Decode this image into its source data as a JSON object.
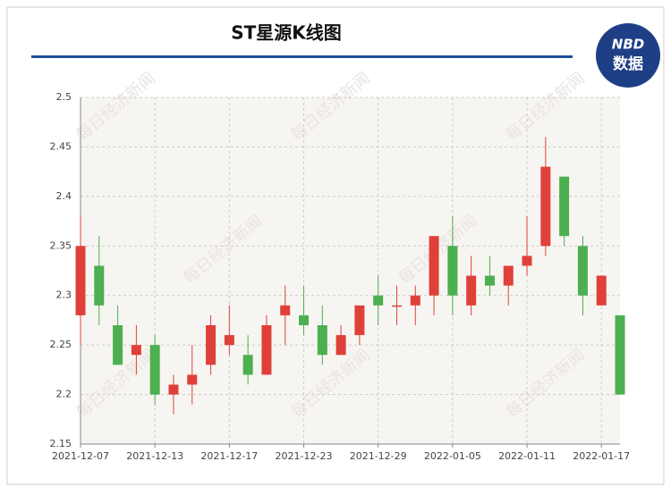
{
  "chart_data": {
    "type": "candlestick",
    "title": "ST星源K线图",
    "logo_top": "NBD",
    "logo_bottom": "数据",
    "watermark": "每日经济新闻",
    "categories": [
      "2021-12-07",
      null,
      null,
      null,
      "2021-12-13",
      null,
      null,
      null,
      "2021-12-17",
      null,
      null,
      null,
      "2021-12-23",
      null,
      null,
      null,
      "2021-12-29",
      null,
      null,
      null,
      "2022-01-05",
      null,
      null,
      null,
      "2022-01-11",
      null,
      null,
      null,
      "2022-01-17",
      null
    ],
    "open": [
      2.28,
      2.33,
      2.27,
      2.24,
      2.25,
      2.2,
      2.21,
      2.23,
      2.25,
      2.24,
      2.22,
      2.28,
      2.28,
      2.27,
      2.24,
      2.26,
      2.3,
      2.29,
      2.29,
      2.3,
      2.35,
      2.29,
      2.32,
      2.31,
      2.33,
      2.35,
      2.42,
      2.35,
      2.29,
      2.28
    ],
    "high": [
      2.38,
      2.36,
      2.29,
      2.27,
      2.26,
      2.22,
      2.25,
      2.28,
      2.29,
      2.26,
      2.28,
      2.31,
      2.31,
      2.29,
      2.27,
      2.29,
      2.32,
      2.31,
      2.31,
      2.36,
      2.38,
      2.34,
      2.34,
      2.33,
      2.38,
      2.46,
      2.42,
      2.36,
      2.32,
      2.28
    ],
    "low": [
      2.25,
      2.27,
      2.23,
      2.22,
      2.19,
      2.18,
      2.19,
      2.22,
      2.24,
      2.21,
      2.22,
      2.25,
      2.26,
      2.23,
      2.24,
      2.25,
      2.27,
      2.27,
      2.27,
      2.28,
      2.28,
      2.28,
      2.3,
      2.29,
      2.32,
      2.34,
      2.35,
      2.28,
      2.29,
      2.2
    ],
    "close": [
      2.35,
      2.29,
      2.23,
      2.25,
      2.2,
      2.21,
      2.22,
      2.27,
      2.26,
      2.22,
      2.27,
      2.29,
      2.27,
      2.24,
      2.26,
      2.29,
      2.29,
      2.29,
      2.3,
      2.36,
      2.3,
      2.32,
      2.31,
      2.33,
      2.34,
      2.43,
      2.36,
      2.3,
      2.32,
      2.2
    ],
    "up_color": "#e0403a",
    "down_color": "#4caf50",
    "ylim": [
      2.15,
      2.5
    ],
    "yticks": [
      2.15,
      2.2,
      2.25,
      2.3,
      2.35,
      2.4,
      2.45,
      2.5
    ],
    "grid": true
  }
}
